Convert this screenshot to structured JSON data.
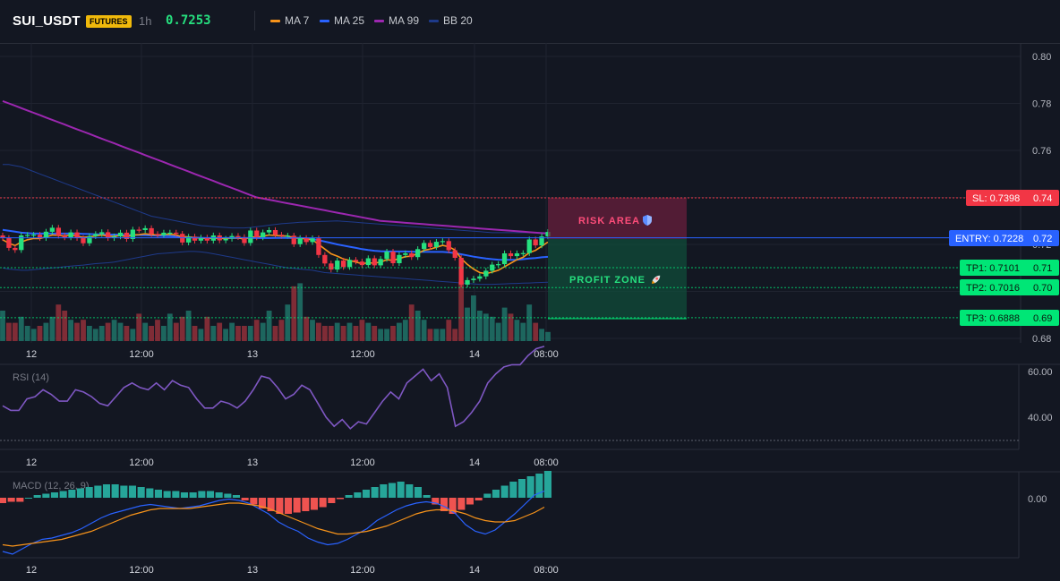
{
  "header": {
    "symbol": "SUI_USDT",
    "badge": "FUTURES",
    "timeframe": "1h",
    "last_price": "0.7253",
    "legend": [
      {
        "name": "MA 7",
        "color": "#f7931a"
      },
      {
        "name": "MA 25",
        "color": "#2962ff"
      },
      {
        "name": "MA 99",
        "color": "#9c27b0"
      },
      {
        "name": "BB 20",
        "color": "#1e3a8a"
      }
    ]
  },
  "colors": {
    "up": "#26e07f",
    "down": "#f23645",
    "vol_up": "#1f6f65",
    "vol_down": "#8c2f39",
    "grid": "#1f2330"
  },
  "price_axis": {
    "ticks": [
      "0.80",
      "0.78",
      "0.76",
      "0.74",
      "0.72",
      "0.71",
      "0.70",
      "0.69",
      "0.68"
    ]
  },
  "time_axis": {
    "labels": [
      "12",
      "12:00",
      "13",
      "12:00",
      "14",
      "08:00"
    ]
  },
  "levels": {
    "sl": {
      "label": "SL: 0.7398",
      "tick": "0.74",
      "value": 0.7398,
      "color": "#f23645"
    },
    "entry": {
      "label": "ENTRY: 0.7228",
      "tick": "0.72",
      "value": 0.7228,
      "color": "#2962ff"
    },
    "tp1": {
      "label": "TP1: 0.7101",
      "tick": "0.71",
      "value": 0.7101,
      "color": "#00e676"
    },
    "tp2": {
      "label": "TP2: 0.7016",
      "tick": "0.70",
      "value": 0.7016,
      "color": "#00e676"
    },
    "tp3": {
      "label": "TP3: 0.6888",
      "tick": "0.69",
      "value": 0.6888,
      "color": "#00e676"
    }
  },
  "zones": {
    "risk_label": "RISK AREA",
    "profit_label": "PROFIT ZONE",
    "risk_icon": "shield-icon",
    "profit_icon": "rocket-icon"
  },
  "rsi": {
    "title": "RSI (14)",
    "ticks": [
      "60.00",
      "40.00"
    ]
  },
  "macd": {
    "title": "MACD (12, 26, 9)",
    "ticks": [
      "0.00"
    ]
  },
  "chart_data": {
    "type": "candlestick",
    "price_range": [
      0.68,
      0.8
    ],
    "candles_close": [
      0.7227,
      0.7185,
      0.7176,
      0.7238,
      0.724,
      0.7241,
      0.7227,
      0.7254,
      0.7271,
      0.7237,
      0.723,
      0.7251,
      0.7227,
      0.7205,
      0.7235,
      0.7244,
      0.7252,
      0.7227,
      0.7234,
      0.725,
      0.7223,
      0.7263,
      0.7261,
      0.7269,
      0.7244,
      0.7239,
      0.725,
      0.725,
      0.7245,
      0.7208,
      0.7233,
      0.7216,
      0.7229,
      0.7216,
      0.7238,
      0.7217,
      0.7224,
      0.7236,
      0.7231,
      0.7206,
      0.7259,
      0.723,
      0.7251,
      0.7261,
      0.7241,
      0.7236,
      0.7237,
      0.7201,
      0.7227,
      0.721,
      0.7226,
      0.7155,
      0.7119,
      0.7093,
      0.7131,
      0.7104,
      0.7134,
      0.7127,
      0.7112,
      0.7141,
      0.7111,
      0.7138,
      0.7169,
      0.712,
      0.7155,
      0.7162,
      0.7146,
      0.718,
      0.7206,
      0.7189,
      0.7211,
      0.7214,
      0.7175,
      0.7143,
      0.7029,
      0.7048,
      0.7054,
      0.7064,
      0.7088,
      0.7114,
      0.7116,
      0.7162,
      0.715,
      0.7162,
      0.7163,
      0.7221,
      0.7196,
      0.7234,
      0.7253
    ],
    "ma7": [
      0.722,
      0.7205,
      0.7195,
      0.721,
      0.722,
      0.7225,
      0.7225,
      0.7232,
      0.724,
      0.7238,
      0.7236,
      0.724,
      0.7236,
      0.723,
      0.7232,
      0.7236,
      0.724,
      0.7235,
      0.7234,
      0.7238,
      0.7232,
      0.724,
      0.7242,
      0.7245,
      0.7242,
      0.724,
      0.7242,
      0.7243,
      0.724,
      0.7232,
      0.7232,
      0.7228,
      0.7228,
      0.7225,
      0.7228,
      0.7225,
      0.7226,
      0.7228,
      0.7228,
      0.7222,
      0.7232,
      0.723,
      0.7235,
      0.724,
      0.7238,
      0.7236,
      0.7236,
      0.7228,
      0.7228,
      0.7222,
      0.722,
      0.72,
      0.718,
      0.716,
      0.715,
      0.7138,
      0.7132,
      0.7125,
      0.7118,
      0.7122,
      0.712,
      0.7125,
      0.7135,
      0.7132,
      0.714,
      0.7148,
      0.715,
      0.7162,
      0.7175,
      0.718,
      0.7188,
      0.7196,
      0.719,
      0.7176,
      0.714,
      0.7115,
      0.7095,
      0.708,
      0.7076,
      0.7082,
      0.709,
      0.7105,
      0.712,
      0.7135,
      0.7145,
      0.7165,
      0.7175,
      0.7192,
      0.721
    ],
    "ma25": [
      0.7262,
      0.7258,
      0.7254,
      0.725,
      0.7248,
      0.7246,
      0.7246,
      0.7246,
      0.7246,
      0.7246,
      0.7246,
      0.7246,
      0.7246,
      0.7245,
      0.7244,
      0.7243,
      0.7243,
      0.7242,
      0.7242,
      0.7241,
      0.724,
      0.724,
      0.724,
      0.7239,
      0.7238,
      0.7237,
      0.7236,
      0.7235,
      0.7234,
      0.7232,
      0.723,
      0.7229,
      0.7228,
      0.7227,
      0.7227,
      0.7227,
      0.7227,
      0.7227,
      0.7227,
      0.7227,
      0.7227,
      0.7227,
      0.7227,
      0.7227,
      0.7228,
      0.7228,
      0.7228,
      0.7227,
      0.7227,
      0.7226,
      0.7223,
      0.7218,
      0.7212,
      0.7206,
      0.72,
      0.7195,
      0.719,
      0.7185,
      0.718,
      0.7176,
      0.7173,
      0.7171,
      0.717,
      0.717,
      0.717,
      0.717,
      0.7169,
      0.7168,
      0.7168,
      0.7168,
      0.7168,
      0.7168,
      0.7166,
      0.7163,
      0.7158,
      0.7153,
      0.7148,
      0.7144,
      0.714,
      0.7137,
      0.7135,
      0.7134,
      0.7134,
      0.7135,
      0.7137,
      0.714,
      0.7142,
      0.7145,
      0.7147
    ],
    "ma99": [
      0.781,
      0.78,
      0.779,
      0.778,
      0.777,
      0.776,
      0.775,
      0.774,
      0.773,
      0.772,
      0.771,
      0.77,
      0.769,
      0.768,
      0.767,
      0.766,
      0.765,
      0.764,
      0.763,
      0.762,
      0.761,
      0.76,
      0.759,
      0.758,
      0.757,
      0.756,
      0.755,
      0.754,
      0.753,
      0.752,
      0.751,
      0.75,
      0.749,
      0.748,
      0.747,
      0.746,
      0.745,
      0.744,
      0.743,
      0.742,
      0.741,
      0.74,
      0.7395,
      0.739,
      0.7385,
      0.738,
      0.7375,
      0.737,
      0.7365,
      0.736,
      0.7355,
      0.735,
      0.7345,
      0.734,
      0.7335,
      0.733,
      0.7325,
      0.732,
      0.7315,
      0.731,
      0.7305,
      0.73,
      0.7298,
      0.7296,
      0.7294,
      0.7292,
      0.729,
      0.7288,
      0.7286,
      0.7284,
      0.7282,
      0.728,
      0.7278,
      0.7276,
      0.7274,
      0.7272,
      0.727,
      0.7268,
      0.7266,
      0.7264,
      0.7262,
      0.726,
      0.7258,
      0.7256,
      0.7254,
      0.7252,
      0.725,
      0.7248,
      0.7246
    ],
    "bb_upper": [
      0.754,
      0.754,
      0.7535,
      0.753,
      0.752,
      0.751,
      0.75,
      0.749,
      0.748,
      0.747,
      0.746,
      0.745,
      0.744,
      0.743,
      0.742,
      0.741,
      0.74,
      0.739,
      0.738,
      0.737,
      0.736,
      0.735,
      0.734,
      0.733,
      0.732,
      0.7315,
      0.731,
      0.7305,
      0.73,
      0.7295,
      0.729,
      0.7285,
      0.728,
      0.7278,
      0.7276,
      0.7274,
      0.7272,
      0.727,
      0.727,
      0.727,
      0.7272,
      0.7275,
      0.7278,
      0.7282,
      0.7285,
      0.7288,
      0.729,
      0.7292,
      0.7294,
      0.7295,
      0.7296,
      0.7297,
      0.7298,
      0.7299,
      0.73,
      0.7298,
      0.7296,
      0.7294,
      0.7292,
      0.729,
      0.7288,
      0.7286,
      0.7284,
      0.7282,
      0.728,
      0.7278,
      0.7276,
      0.7274,
      0.7272,
      0.727,
      0.7268,
      0.7266,
      0.7264,
      0.7262,
      0.726,
      0.7258,
      0.7256,
      0.7254,
      0.7252,
      0.725,
      0.725,
      0.725,
      0.725,
      0.725,
      0.725,
      0.725,
      0.725,
      0.725,
      0.725
    ],
    "bb_lower": [
      0.71,
      0.7095,
      0.7092,
      0.709,
      0.709,
      0.7092,
      0.7095,
      0.7098,
      0.71,
      0.7102,
      0.7105,
      0.7108,
      0.711,
      0.7112,
      0.7115,
      0.7118,
      0.712,
      0.7122,
      0.7125,
      0.713,
      0.7135,
      0.714,
      0.7145,
      0.715,
      0.7155,
      0.716,
      0.7162,
      0.7164,
      0.7166,
      0.7168,
      0.717,
      0.717,
      0.7168,
      0.7165,
      0.716,
      0.7155,
      0.715,
      0.7145,
      0.714,
      0.7135,
      0.713,
      0.7125,
      0.712,
      0.7115,
      0.711,
      0.7105,
      0.71,
      0.7098,
      0.7095,
      0.7092,
      0.709,
      0.7085,
      0.708,
      0.7078,
      0.7076,
      0.7074,
      0.7072,
      0.707,
      0.7068,
      0.7066,
      0.7064,
      0.7062,
      0.706,
      0.7058,
      0.7056,
      0.7054,
      0.7052,
      0.705,
      0.7048,
      0.7046,
      0.7044,
      0.7042,
      0.704,
      0.7038,
      0.7036,
      0.7034,
      0.7032,
      0.703,
      0.703,
      0.703,
      0.7031,
      0.7032,
      0.7033,
      0.7034,
      0.7035,
      0.7036,
      0.7037,
      0.7038,
      0.7039
    ],
    "volume": [
      0.5,
      0.3,
      0.3,
      0.4,
      0.25,
      0.2,
      0.25,
      0.3,
      0.4,
      0.6,
      0.5,
      0.35,
      0.3,
      0.35,
      0.25,
      0.2,
      0.25,
      0.3,
      0.35,
      0.3,
      0.25,
      0.2,
      0.45,
      0.3,
      0.25,
      0.35,
      0.25,
      0.45,
      0.3,
      0.4,
      0.5,
      0.25,
      0.2,
      0.4,
      0.25,
      0.3,
      0.2,
      0.3,
      0.25,
      0.25,
      0.25,
      0.35,
      0.3,
      0.5,
      0.25,
      0.35,
      0.6,
      0.9,
      0.95,
      0.4,
      0.35,
      0.3,
      0.25,
      0.25,
      0.3,
      0.25,
      0.3,
      0.25,
      0.35,
      0.3,
      0.25,
      0.2,
      0.2,
      0.25,
      0.3,
      0.35,
      0.6,
      0.5,
      0.35,
      0.2,
      0.2,
      0.2,
      0.35,
      0.2,
      0.98,
      0.55,
      0.75,
      0.5,
      0.45,
      0.4,
      0.3,
      0.55,
      0.45,
      0.35,
      0.3,
      0.6,
      0.3,
      0.2,
      0.15
    ],
    "rsi": [
      45,
      43,
      43,
      48,
      49,
      52,
      50,
      47,
      47,
      52,
      51,
      49,
      46,
      45,
      49,
      53,
      55,
      53,
      52,
      55,
      52,
      56,
      54,
      53,
      48,
      44,
      44,
      47,
      46,
      44,
      47,
      52,
      58,
      57,
      53,
      48,
      50,
      54,
      52,
      46,
      40,
      36,
      39,
      35,
      38,
      37,
      42,
      47,
      51,
      48,
      55,
      58,
      61,
      56,
      59,
      53,
      36,
      38,
      42,
      47,
      55,
      59,
      62,
      63,
      63,
      67,
      70,
      71
    ],
    "macd_hist": [
      -0.0004,
      -0.0003,
      -0.0003,
      0.0,
      0.0002,
      0.0003,
      0.0004,
      0.0005,
      0.0006,
      0.0007,
      0.0008,
      0.0009,
      0.001,
      0.001,
      0.0009,
      0.0009,
      0.0008,
      0.0007,
      0.0006,
      0.0005,
      0.0005,
      0.0004,
      0.0004,
      0.0005,
      0.0005,
      0.0004,
      0.0003,
      0.0002,
      -0.0002,
      -0.0005,
      -0.0008,
      -0.001,
      -0.0012,
      -0.0012,
      -0.0011,
      -0.001,
      -0.0009,
      -0.0007,
      -0.0004,
      -0.0001,
      0.0002,
      0.0004,
      0.0006,
      0.0008,
      0.001,
      0.0011,
      0.0012,
      0.001,
      0.0008,
      0.0002,
      -0.0005,
      -0.001,
      -0.0012,
      -0.0009,
      -0.0005,
      -0.0002,
      0.0003,
      0.0006,
      0.0009,
      0.0012,
      0.0014,
      0.0016,
      0.0018,
      0.002
    ],
    "macd_line": [
      -0.004,
      -0.0042,
      -0.0038,
      -0.0034,
      -0.0031,
      -0.003,
      -0.0028,
      -0.0026,
      -0.0023,
      -0.0019,
      -0.0015,
      -0.0012,
      -0.001,
      -0.0008,
      -0.0006,
      -0.0005,
      -0.0006,
      -0.0007,
      -0.0008,
      -0.0007,
      -0.0006,
      -0.0004,
      -0.0002,
      -0.0001,
      -0.0002,
      -0.0004,
      -0.0008,
      -0.0012,
      -0.0018,
      -0.0022,
      -0.0025,
      -0.003,
      -0.0033,
      -0.0035,
      -0.0034,
      -0.0031,
      -0.0027,
      -0.0023,
      -0.0017,
      -0.0013,
      -0.0009,
      -0.0006,
      -0.0004,
      -0.0003,
      -0.0004,
      -0.0007,
      -0.0012,
      -0.002,
      -0.0025,
      -0.0027,
      -0.0024,
      -0.0018,
      -0.0012,
      -0.0005,
      0.0002,
      0.0005
    ],
    "macd_signal": [
      -0.0035,
      -0.0036,
      -0.0035,
      -0.0034,
      -0.0033,
      -0.0032,
      -0.0031,
      -0.0029,
      -0.0027,
      -0.0025,
      -0.0022,
      -0.0019,
      -0.0016,
      -0.0013,
      -0.0011,
      -0.0009,
      -0.0008,
      -0.0008,
      -0.0008,
      -0.0008,
      -0.0007,
      -0.0006,
      -0.0005,
      -0.0004,
      -0.0004,
      -0.0005,
      -0.0006,
      -0.0008,
      -0.0011,
      -0.0014,
      -0.0017,
      -0.002,
      -0.0023,
      -0.0025,
      -0.0027,
      -0.0027,
      -0.0026,
      -0.0025,
      -0.0023,
      -0.0021,
      -0.0018,
      -0.0015,
      -0.0012,
      -0.001,
      -0.0009,
      -0.0009,
      -0.001,
      -0.0012,
      -0.0015,
      -0.0017,
      -0.0018,
      -0.0018,
      -0.0017,
      -0.0014,
      -0.0011,
      -0.0007
    ]
  }
}
